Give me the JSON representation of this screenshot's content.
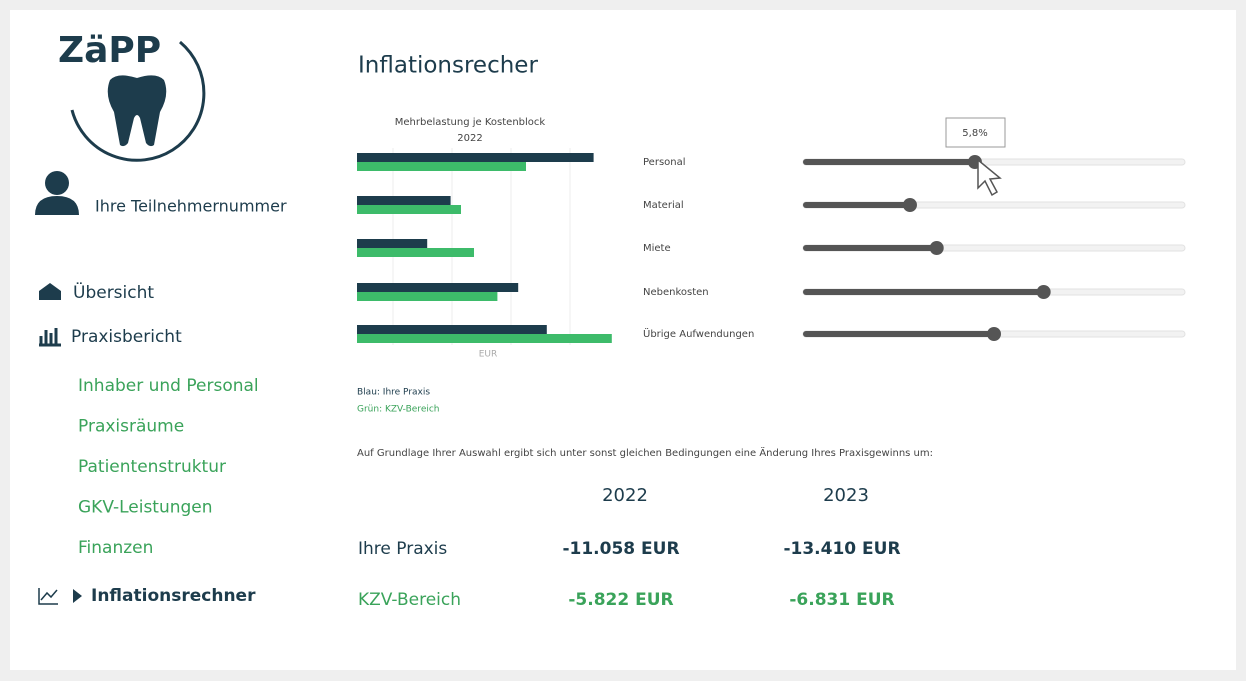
{
  "sidebar": {
    "logo": "ZäPP",
    "user": "Ihre Teilnehmernummer",
    "nav": [
      "Übersicht",
      "Praxisbericht"
    ],
    "subnav": [
      "Inhaber und Personal",
      "Praxisräume",
      "Patientenstruktur",
      "GKV-Leistungen",
      "Finanzen"
    ],
    "active": "Inflationsrechner"
  },
  "title": "Inflationsrecher",
  "chart_data": {
    "type": "bar",
    "orientation": "horizontal",
    "title": "Mehrbelastung je Kostenblock",
    "subtitle": "2022",
    "x_label": "EUR",
    "xlim": [
      0,
      100
    ],
    "categories": [
      "Personal",
      "Material",
      "Miete",
      "Nebenkosten",
      "Übrige Aufwendungen"
    ],
    "series": [
      {
        "name": "Blau: Ihre Praxis",
        "color": "#1d3c4c",
        "values": [
          91,
          36,
          27,
          62,
          73
        ]
      },
      {
        "name": "Grün: KZV-Bereich",
        "color": "#3dbb6a",
        "values": [
          65,
          40,
          45,
          54,
          98
        ]
      }
    ]
  },
  "sliders": {
    "range": [
      0,
      100
    ],
    "positions": [
      45,
      28,
      35,
      63,
      50
    ],
    "tooltip": "5,8%"
  },
  "result": {
    "sentence": "Auf Grundlage Ihrer Auswahl ergibt sich unter sonst gleichen Bedingungen eine Änderung Ihres Praxisgewinns um:",
    "columns": [
      "2022",
      "2023"
    ],
    "rows": [
      {
        "label": "Ihre Praxis",
        "values": [
          "-11.058 EUR",
          "-13.410 EUR"
        ]
      },
      {
        "label": "KZV-Bereich",
        "values": [
          "-5.822 EUR",
          "-6.831 EUR"
        ]
      }
    ]
  }
}
